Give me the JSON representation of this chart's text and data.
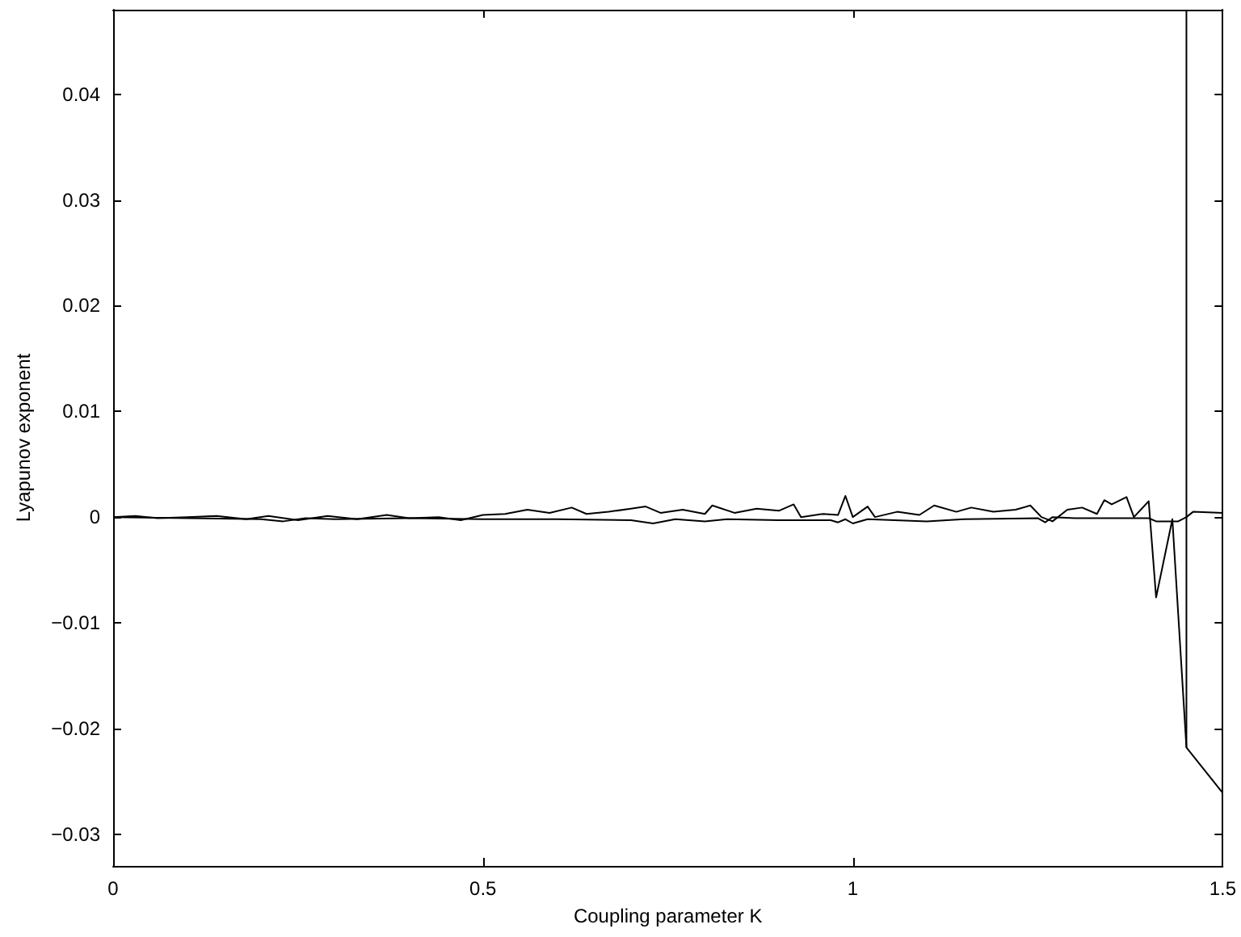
{
  "chart_data": {
    "type": "line",
    "xlabel": "Coupling parameter K",
    "ylabel": "Lyapunov exponent",
    "xlim": [
      0,
      1.5
    ],
    "xticks": [
      0,
      0.5,
      1,
      1.5
    ],
    "ylim": [
      -0.033,
      0.048
    ],
    "yticks": [
      {
        "value": -0.03,
        "label": "−0.03"
      },
      {
        "value": -0.02,
        "label": "−0.02"
      },
      {
        "value": -0.01,
        "label": "−0.01"
      },
      0,
      0.01,
      0.02,
      0.03,
      0.04
    ],
    "series": [
      {
        "color": "#000000",
        "x": [
          0,
          0.03,
          0.06,
          0.1,
          0.14,
          0.18,
          0.21,
          0.25,
          0.29,
          0.33,
          0.37,
          0.4,
          0.44,
          0.47,
          0.5,
          0.53,
          0.56,
          0.59,
          0.62,
          0.64,
          0.67,
          0.7,
          0.72,
          0.74,
          0.77,
          0.8,
          0.81,
          0.84,
          0.87,
          0.9,
          0.92,
          0.93,
          0.96,
          0.98,
          0.99,
          1.0,
          1.02,
          1.03,
          1.06,
          1.09,
          1.11,
          1.14,
          1.16,
          1.19,
          1.22,
          1.24,
          1.255,
          1.27,
          1.29,
          1.31,
          1.33,
          1.34,
          1.35,
          1.37,
          1.38,
          1.4,
          1.41,
          1.432,
          1.451,
          1.5
        ],
        "values": [
          0,
          0.0001,
          -0.0001,
          0,
          0.0001,
          -0.0002,
          0.0001,
          -0.0003,
          0.0001,
          -0.0002,
          0.0002,
          -0.0001,
          0,
          -0.0003,
          0.0002,
          0.0003,
          0.0007,
          0.0004,
          0.0009,
          0.0003,
          0.0005,
          0.0008,
          0.001,
          0.0004,
          0.0007,
          0.0003,
          0.0011,
          0.0004,
          0.0008,
          0.0006,
          0.0012,
          0,
          0.0003,
          0.0002,
          0.002,
          0,
          0.001,
          0,
          0.0005,
          0.0002,
          0.0011,
          0.0005,
          0.0009,
          0.0005,
          0.0007,
          0.0011,
          0,
          -0.0004,
          0.0007,
          0.0009,
          0.0003,
          0.0016,
          0.0012,
          0.0019,
          0,
          0.0015,
          -0.0076,
          -0.0002,
          -0.0218,
          -0.0261
        ]
      },
      {
        "color": "#000000",
        "x": [
          0,
          0.1,
          0.2,
          0.23,
          0.26,
          0.3,
          0.4,
          0.5,
          0.6,
          0.7,
          0.73,
          0.76,
          0.8,
          0.83,
          0.9,
          0.97,
          0.98,
          0.99,
          1.0,
          1.02,
          1.1,
          1.15,
          1.25,
          1.26,
          1.27,
          1.3,
          1.4,
          1.41,
          1.44,
          1.451,
          1.46,
          1.5
        ],
        "values": [
          0,
          -0.0001,
          -0.0002,
          -0.0004,
          -0.0001,
          -0.0002,
          -0.0001,
          -0.0002,
          -0.0002,
          -0.0003,
          -0.0006,
          -0.0002,
          -0.0004,
          -0.0002,
          -0.0003,
          -0.0003,
          -0.0005,
          -0.0002,
          -0.0006,
          -0.0002,
          -0.0004,
          -0.0002,
          -0.0001,
          -0.0005,
          0,
          -0.0001,
          -0.0001,
          -0.0004,
          -0.0004,
          0,
          0.0005,
          0.0004
        ]
      },
      {
        "color": "#000000",
        "x": [
          1.451,
          1.451
        ],
        "values": [
          -0.0218,
          0.048
        ]
      }
    ]
  }
}
